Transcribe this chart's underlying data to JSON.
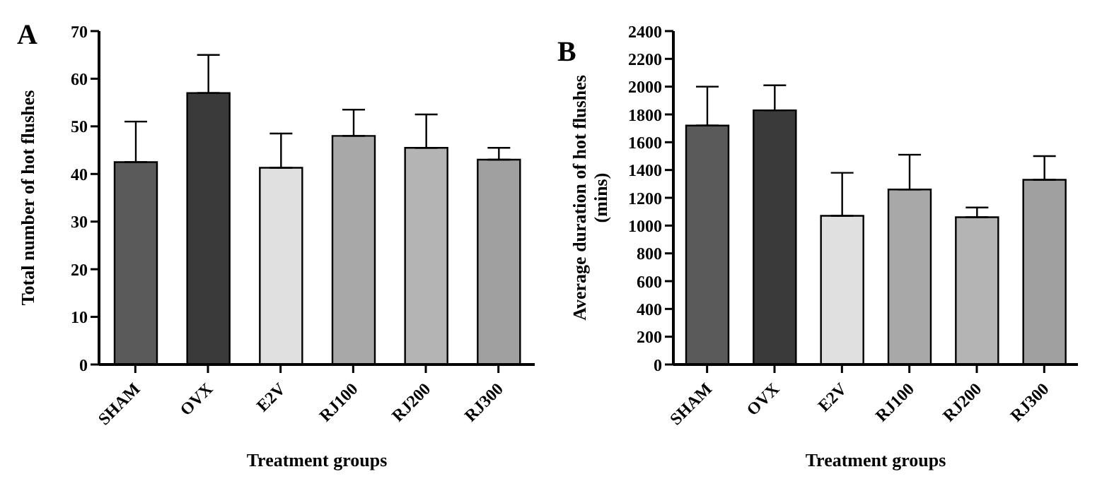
{
  "chart_data": [
    {
      "type": "bar",
      "title": "A",
      "xlabel": "Treatment groups",
      "ylabel": "Total number of hot flushes",
      "categories": [
        "SHAM",
        "OVX",
        "E2V",
        "RJ100",
        "RJ200",
        "RJ300"
      ],
      "values": [
        42.5,
        57,
        41.3,
        48,
        45.5,
        43
      ],
      "errors": [
        [
          42.5,
          51
        ],
        [
          57,
          65
        ],
        [
          41.3,
          48.5
        ],
        [
          48,
          53.5
        ],
        [
          45.5,
          52.5
        ],
        [
          43,
          45.5
        ]
      ],
      "colors": [
        "#5a5a5a",
        "#3a3a3a",
        "#e0e0e0",
        "#a8a8a8",
        "#b4b4b4",
        "#a0a0a0"
      ],
      "ylim": [
        0,
        70
      ],
      "yticks": [
        0,
        10,
        20,
        30,
        40,
        50,
        60,
        70
      ],
      "grid": false,
      "legend": false
    },
    {
      "type": "bar",
      "title": "B",
      "xlabel": "Treatment groups",
      "ylabel": "Average duration of hot flushes (mins)",
      "categories": [
        "SHAM",
        "OVX",
        "E2V",
        "RJ100",
        "RJ200",
        "RJ300"
      ],
      "values": [
        1720,
        1830,
        1070,
        1260,
        1060,
        1330
      ],
      "errors": [
        [
          1720,
          2000
        ],
        [
          1830,
          2010
        ],
        [
          1070,
          1380
        ],
        [
          1260,
          1510
        ],
        [
          1060,
          1130
        ],
        [
          1330,
          1500
        ]
      ],
      "colors": [
        "#5a5a5a",
        "#3a3a3a",
        "#e0e0e0",
        "#a8a8a8",
        "#b4b4b4",
        "#a0a0a0"
      ],
      "ylim": [
        0,
        2400
      ],
      "yticks": [
        0,
        200,
        400,
        600,
        800,
        1000,
        1200,
        1400,
        1600,
        1800,
        2000,
        2200,
        2400
      ],
      "grid": false,
      "legend": false
    }
  ]
}
